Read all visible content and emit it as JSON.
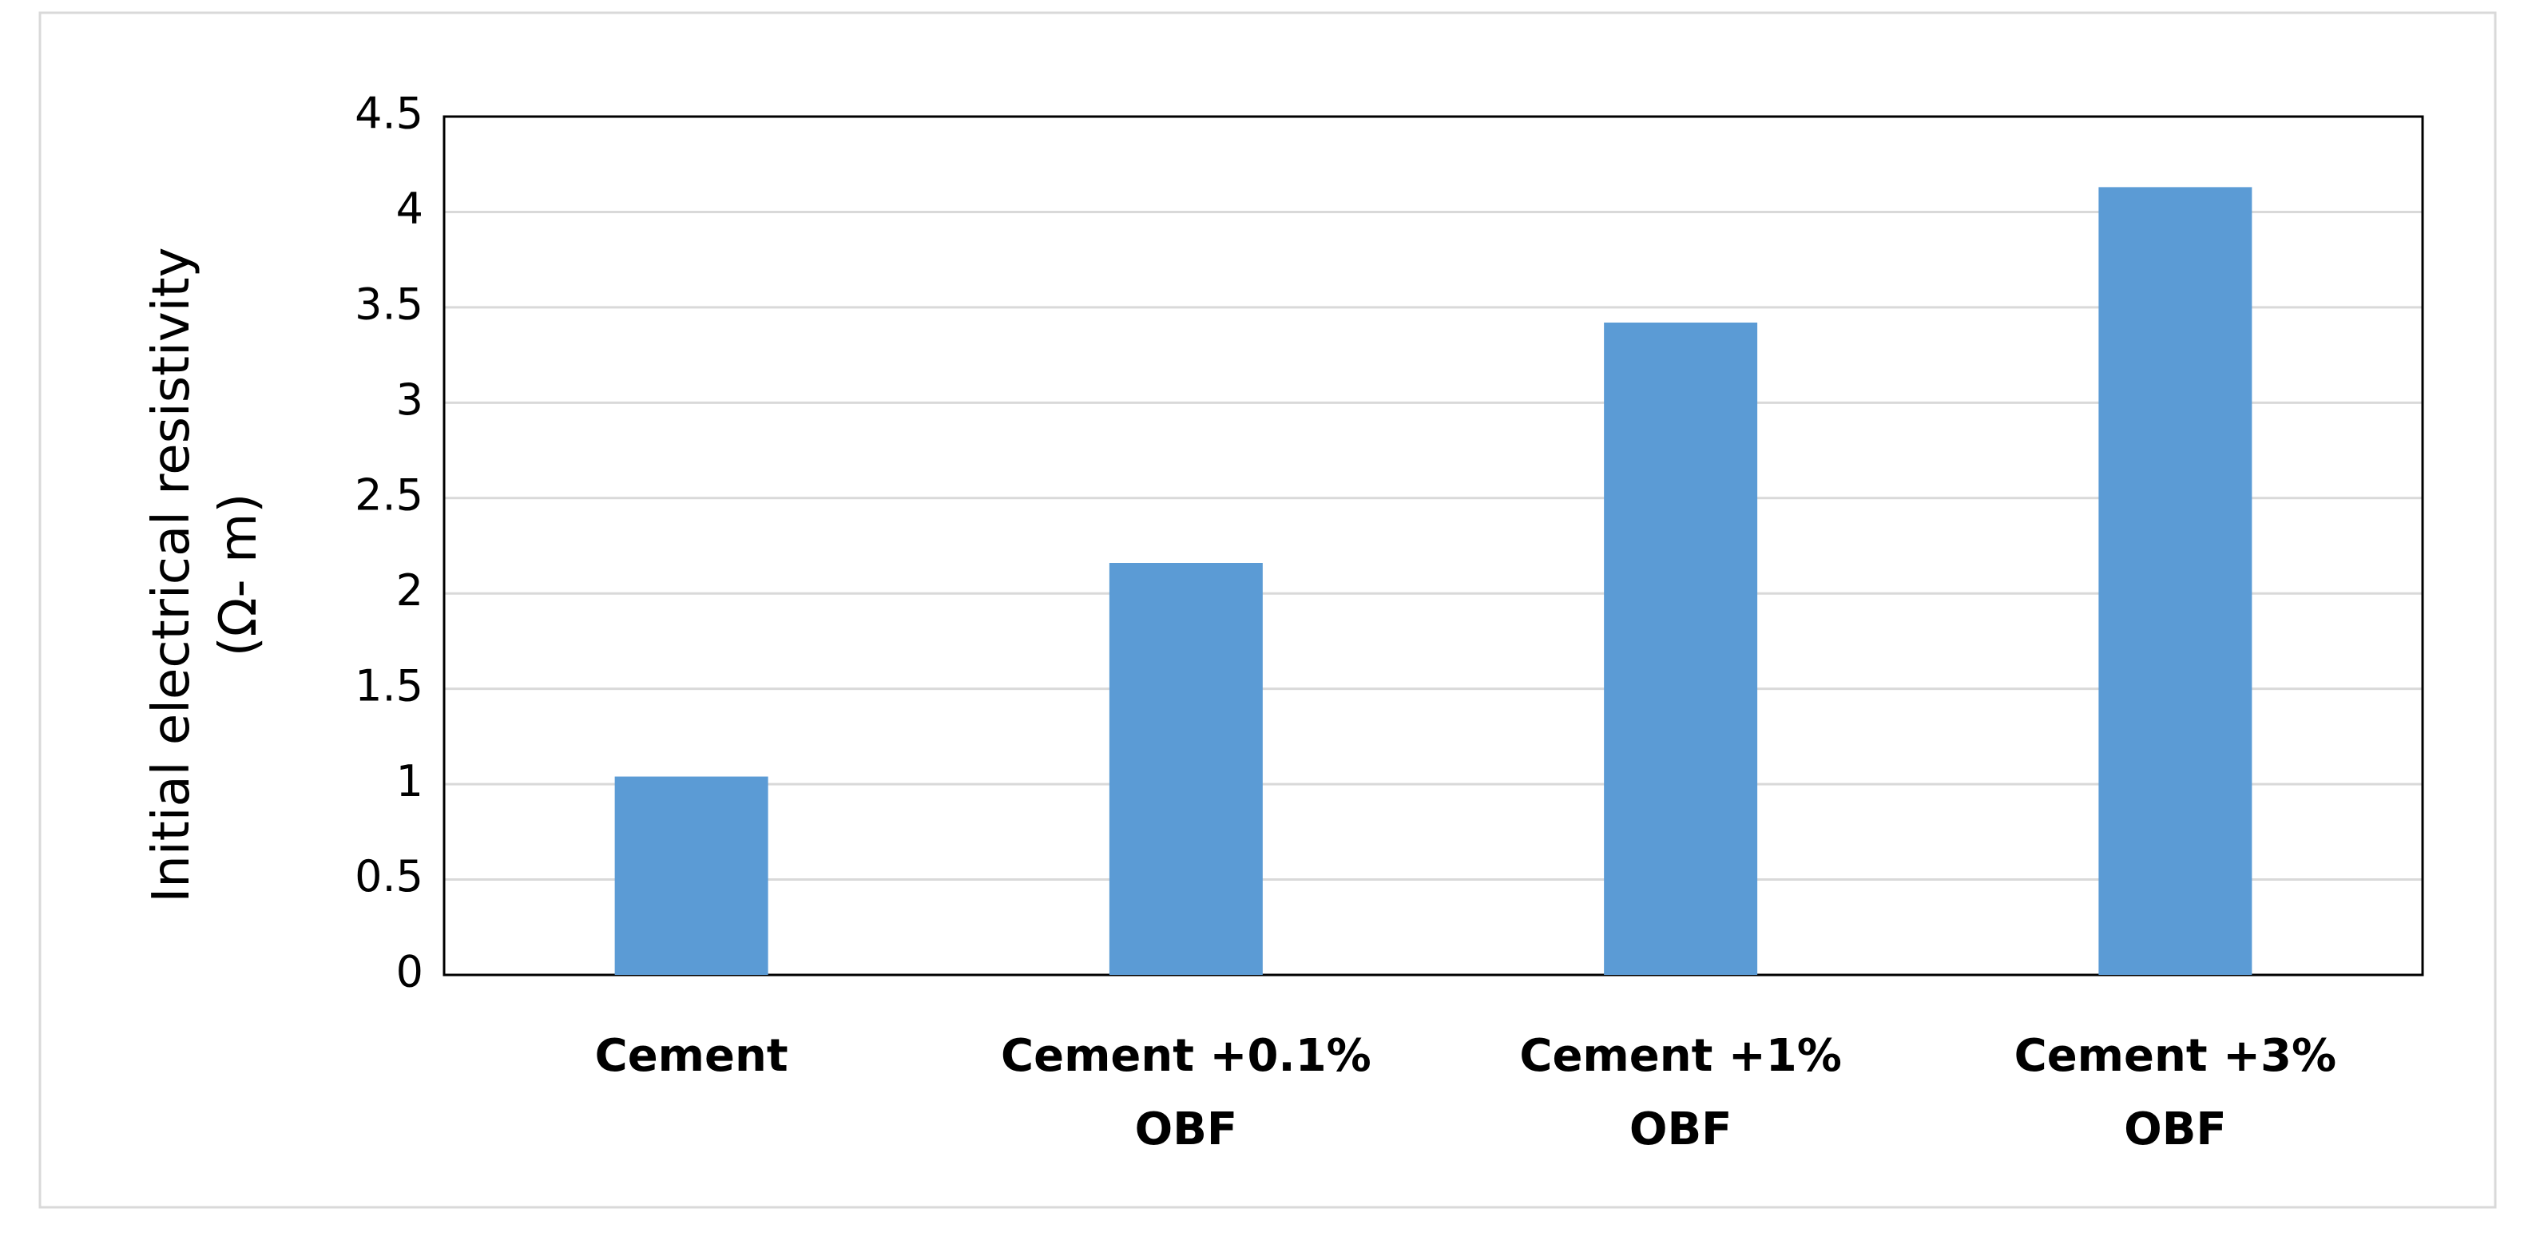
{
  "chart_data": {
    "type": "bar",
    "y_label": "Initial electrical resistivity\n(Ω- m)",
    "categories": [
      "Cement",
      "Cement +0.1%\nOBF",
      "Cement +1%\nOBF",
      "Cement +3%\nOBF"
    ],
    "values": [
      1.04,
      2.16,
      3.42,
      4.13
    ],
    "color": "#5b9bd5",
    "ylim": [
      0,
      4.5
    ],
    "yticks": [
      0,
      0.5,
      1,
      1.5,
      2,
      2.5,
      3,
      3.5,
      4,
      4.5
    ],
    "grid": true
  }
}
